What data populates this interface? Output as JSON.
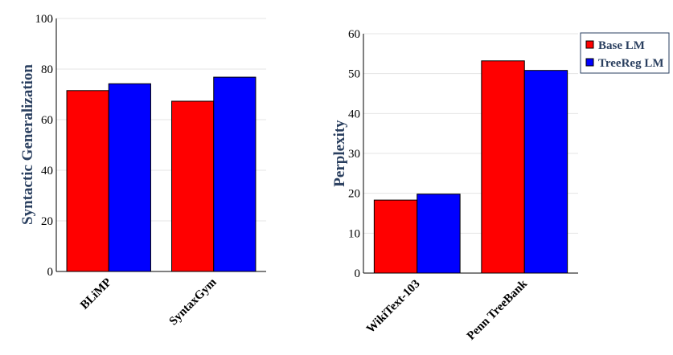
{
  "chart_data": [
    {
      "type": "bar",
      "categories": [
        "BLiMP",
        "SyntaxGym"
      ],
      "series": [
        {
          "name": "Base LM",
          "values": [
            71.5,
            67.3
          ]
        },
        {
          "name": "TreeReg LM",
          "values": [
            74.2,
            76.8
          ]
        }
      ],
      "xlabel": "",
      "ylabel": "Syntactic Generalization",
      "ylim": [
        0,
        100
      ],
      "yticks": [
        0,
        20,
        40,
        60,
        80,
        100
      ],
      "grid": true,
      "legend": "none"
    },
    {
      "type": "bar",
      "categories": [
        "WikiText-103",
        "Penn TreeBank"
      ],
      "series": [
        {
          "name": "Base LM",
          "values": [
            18.3,
            53.2
          ]
        },
        {
          "name": "TreeReg LM",
          "values": [
            19.8,
            50.8
          ]
        }
      ],
      "xlabel": "",
      "ylabel": "Perplexity",
      "ylim": [
        0,
        60
      ],
      "yticks": [
        0,
        10,
        20,
        30,
        40,
        50,
        60
      ],
      "grid": true,
      "legend": "top-right"
    }
  ],
  "colors": {
    "Base LM": "#ff0000",
    "TreeReg LM": "#0000ff",
    "axis_title": "#2a3f5f",
    "grid": "#e5e5e5"
  }
}
